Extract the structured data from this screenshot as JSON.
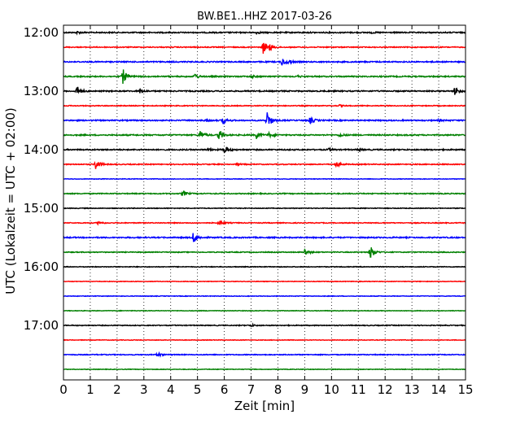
{
  "chart_data": {
    "type": "line",
    "title": "BW.BE1..HHZ 2017-03-26",
    "xlabel": "Zeit  [min]",
    "ylabel": "UTC (Lokalzeit = UTC + 02:00)",
    "xlim": [
      0,
      15
    ],
    "x_ticks": [
      0,
      1,
      2,
      3,
      4,
      5,
      6,
      7,
      8,
      9,
      10,
      11,
      12,
      13,
      14,
      15
    ],
    "y_tick_labels": [
      "12:00",
      "13:00",
      "14:00",
      "15:00",
      "16:00",
      "17:00"
    ],
    "grid": "vertical dotted",
    "trace_colors": [
      "#000000",
      "#ff0000",
      "#0000ff",
      "#008000"
    ],
    "traces": [
      {
        "start": "12:00",
        "noise": 0.1,
        "events": [
          [
            0.5,
            0.2
          ],
          [
            7.2,
            0.15
          ],
          [
            11.5,
            0.1
          ]
        ]
      },
      {
        "start": "12:15",
        "noise": 0.08,
        "events": [
          [
            7.45,
            1.2
          ],
          [
            7.7,
            0.5
          ]
        ]
      },
      {
        "start": "12:30",
        "noise": 0.1,
        "events": [
          [
            8.15,
            0.75
          ],
          [
            8.4,
            0.3
          ]
        ]
      },
      {
        "start": "12:45",
        "noise": 0.1,
        "events": [
          [
            2.2,
            1.5
          ],
          [
            4.9,
            0.5
          ],
          [
            7.0,
            0.25
          ],
          [
            8.7,
            0.2
          ]
        ]
      },
      {
        "start": "13:00",
        "noise": 0.1,
        "events": [
          [
            0.5,
            0.9
          ],
          [
            2.85,
            0.35
          ],
          [
            14.6,
            0.8
          ]
        ]
      },
      {
        "start": "13:15",
        "noise": 0.07,
        "events": [
          [
            10.3,
            0.15
          ]
        ]
      },
      {
        "start": "13:30",
        "noise": 0.1,
        "events": [
          [
            5.3,
            0.3
          ],
          [
            5.95,
            0.55
          ],
          [
            7.6,
            1.6
          ],
          [
            9.2,
            0.6
          ],
          [
            14.0,
            0.15
          ]
        ]
      },
      {
        "start": "13:45",
        "noise": 0.1,
        "events": [
          [
            5.1,
            0.75
          ],
          [
            5.8,
            1.0
          ],
          [
            7.2,
            0.6
          ],
          [
            7.65,
            0.4
          ],
          [
            10.3,
            0.3
          ]
        ]
      },
      {
        "start": "14:00",
        "noise": 0.1,
        "events": [
          [
            5.4,
            0.25
          ],
          [
            6.0,
            0.75
          ],
          [
            9.9,
            0.2
          ],
          [
            11.0,
            0.2
          ]
        ]
      },
      {
        "start": "14:15",
        "noise": 0.08,
        "events": [
          [
            1.2,
            1.0
          ],
          [
            10.15,
            0.55
          ],
          [
            6.5,
            0.15
          ]
        ]
      },
      {
        "start": "14:30",
        "noise": 0.05,
        "events": []
      },
      {
        "start": "14:45",
        "noise": 0.08,
        "events": [
          [
            4.45,
            0.55
          ]
        ]
      },
      {
        "start": "15:00",
        "noise": 0.06,
        "events": []
      },
      {
        "start": "15:15",
        "noise": 0.07,
        "events": [
          [
            1.3,
            0.3
          ],
          [
            5.8,
            0.5
          ]
        ]
      },
      {
        "start": "15:30",
        "noise": 0.1,
        "events": [
          [
            4.85,
            1.2
          ]
        ]
      },
      {
        "start": "15:45",
        "noise": 0.07,
        "events": [
          [
            9.0,
            0.7
          ],
          [
            11.45,
            1.3
          ]
        ]
      },
      {
        "start": "16:00",
        "noise": 0.06,
        "events": []
      },
      {
        "start": "16:15",
        "noise": 0.05,
        "events": []
      },
      {
        "start": "16:30",
        "noise": 0.05,
        "events": []
      },
      {
        "start": "16:45",
        "noise": 0.05,
        "events": []
      },
      {
        "start": "17:00",
        "noise": 0.07,
        "events": [
          [
            7.0,
            0.2
          ]
        ]
      },
      {
        "start": "17:15",
        "noise": 0.05,
        "events": []
      },
      {
        "start": "17:30",
        "noise": 0.07,
        "events": [
          [
            3.5,
            0.45
          ]
        ]
      },
      {
        "start": "17:45",
        "noise": 0.05,
        "events": []
      }
    ]
  }
}
